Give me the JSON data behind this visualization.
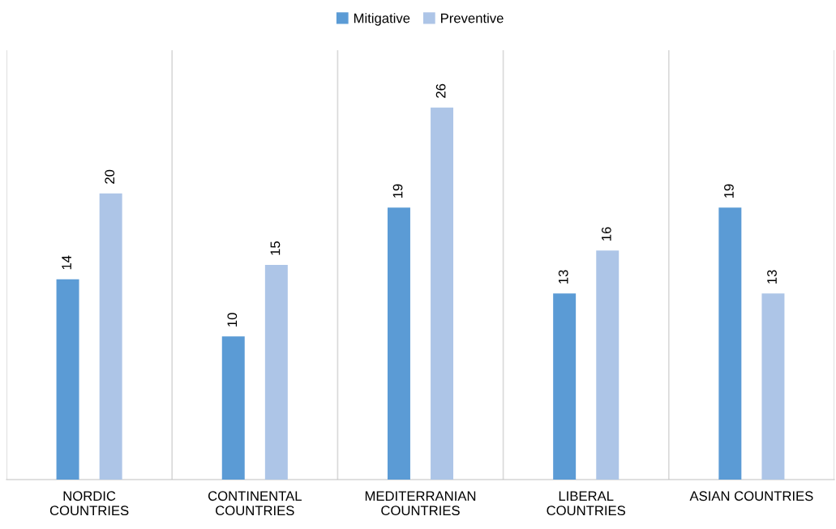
{
  "chart_data": {
    "type": "bar",
    "categories": [
      "NORDIC\nCOUNTRIES",
      "CONTINENTAL\nCOUNTRIES",
      "MEDITERRANIAN\nCOUNTRIES",
      "LIBERAL\nCOUNTRIES",
      "ASIAN COUNTRIES"
    ],
    "series": [
      {
        "name": "Mitigative",
        "color": "#5b9bd5",
        "values": [
          14,
          10,
          19,
          13,
          19
        ]
      },
      {
        "name": "Preventive",
        "color": "#adc5e7",
        "values": [
          20,
          15,
          26,
          16,
          13
        ]
      }
    ],
    "ylim": [
      0,
      30
    ],
    "tick_labels": "x",
    "data_labels": true,
    "grid": "x",
    "legend": "top"
  }
}
